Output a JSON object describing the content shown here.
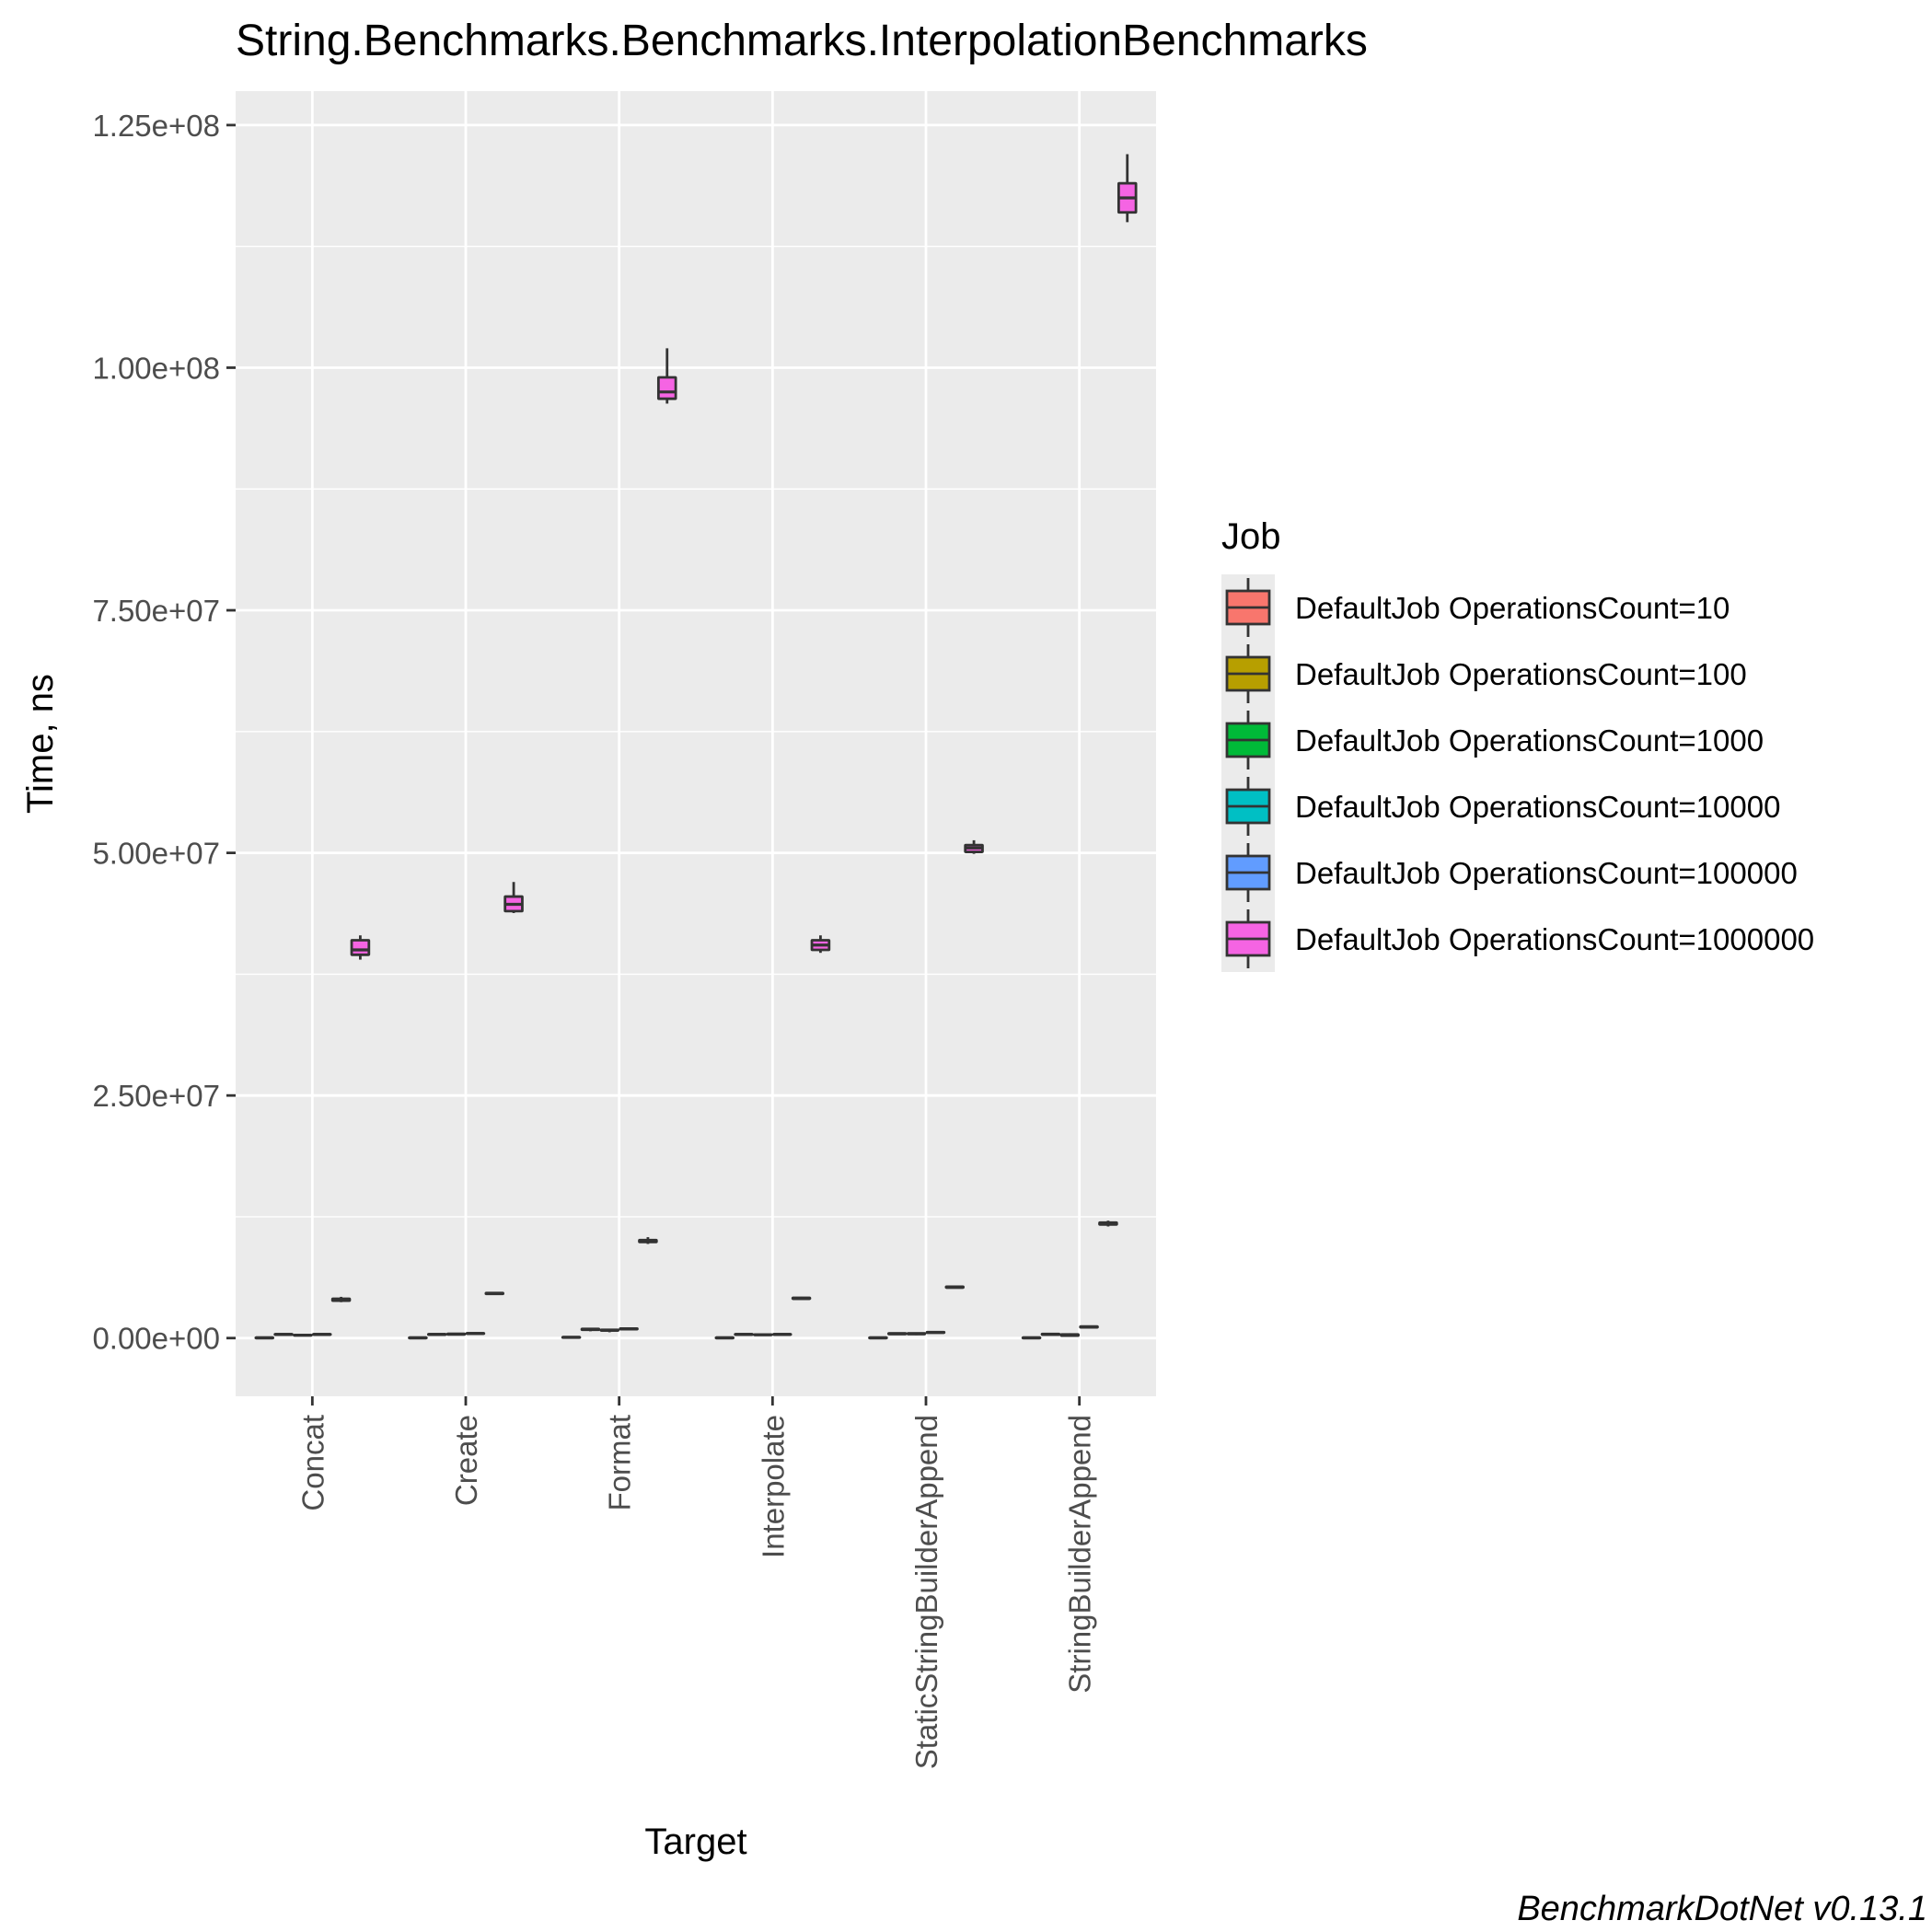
{
  "chart_data": {
    "type": "boxplot",
    "title": "String.Benchmarks.Benchmarks.InterpolationBenchmarks",
    "xlabel": "Target",
    "ylabel": "Time, ns",
    "caption": "BenchmarkDotNet v0.13.1",
    "ylim": [
      -6000000,
      128500000
    ],
    "yticks": [
      0,
      25000000,
      50000000,
      75000000,
      100000000,
      125000000
    ],
    "ytick_labels": [
      "0.00e+00",
      "2.50e+07",
      "5.00e+07",
      "7.50e+07",
      "1.00e+08",
      "1.25e+08"
    ],
    "grid": true,
    "legend": {
      "title": "Job",
      "position": "right",
      "entries": [
        {
          "label": "DefaultJob OperationsCount=10",
          "color": "#F8766D"
        },
        {
          "label": "DefaultJob OperationsCount=100",
          "color": "#B79F00"
        },
        {
          "label": "DefaultJob OperationsCount=1000",
          "color": "#00BA38"
        },
        {
          "label": "DefaultJob OperationsCount=10000",
          "color": "#00BFC4"
        },
        {
          "label": "DefaultJob OperationsCount=100000",
          "color": "#619CFF"
        },
        {
          "label": "DefaultJob OperationsCount=1000000",
          "color": "#F564E3"
        }
      ]
    },
    "categories": [
      "Concat",
      "Create",
      "Format",
      "Interpolate",
      "StaticStringBuilderAppend",
      "StringBuilderAppend"
    ],
    "series": [
      {
        "name": "DefaultJob OperationsCount=10",
        "boxes": [
          {
            "min": 30000,
            "q1": 38000,
            "median": 40000,
            "q3": 42000,
            "max": 50000
          },
          {
            "min": 30000,
            "q1": 38000,
            "median": 40000,
            "q3": 42000,
            "max": 50000
          },
          {
            "min": 70000,
            "q1": 85000,
            "median": 90000,
            "q3": 95000,
            "max": 110000
          },
          {
            "min": 30000,
            "q1": 38000,
            "median": 40000,
            "q3": 42000,
            "max": 50000
          },
          {
            "min": 30000,
            "q1": 38000,
            "median": 40000,
            "q3": 42000,
            "max": 50000
          },
          {
            "min": 30000,
            "q1": 38000,
            "median": 40000,
            "q3": 42000,
            "max": 50000
          }
        ]
      },
      {
        "name": "DefaultJob OperationsCount=100",
        "boxes": [
          {
            "min": 300000,
            "q1": 360000,
            "median": 380000,
            "q3": 400000,
            "max": 450000
          },
          {
            "min": 300000,
            "q1": 360000,
            "median": 380000,
            "q3": 400000,
            "max": 450000
          },
          {
            "min": 700000,
            "q1": 850000,
            "median": 900000,
            "q3": 950000,
            "max": 1050000
          },
          {
            "min": 300000,
            "q1": 360000,
            "median": 380000,
            "q3": 400000,
            "max": 450000
          },
          {
            "min": 350000,
            "q1": 420000,
            "median": 450000,
            "q3": 480000,
            "max": 550000
          },
          {
            "min": 300000,
            "q1": 360000,
            "median": 390000,
            "q3": 420000,
            "max": 480000
          }
        ]
      },
      {
        "name": "DefaultJob OperationsCount=1000",
        "boxes": [
          {
            "min": 200000,
            "q1": 280000,
            "median": 300000,
            "q3": 320000,
            "max": 400000
          },
          {
            "min": 300000,
            "q1": 380000,
            "median": 400000,
            "q3": 430000,
            "max": 500000
          },
          {
            "min": 600000,
            "q1": 780000,
            "median": 800000,
            "q3": 850000,
            "max": 950000
          },
          {
            "min": 250000,
            "q1": 330000,
            "median": 350000,
            "q3": 370000,
            "max": 450000
          },
          {
            "min": 300000,
            "q1": 420000,
            "median": 450000,
            "q3": 480000,
            "max": 560000
          },
          {
            "min": 150000,
            "q1": 250000,
            "median": 300000,
            "q3": 380000,
            "max": 500000
          }
        ]
      },
      {
        "name": "DefaultJob OperationsCount=10000",
        "boxes": [
          {
            "min": 320000,
            "q1": 360000,
            "median": 380000,
            "q3": 400000,
            "max": 450000
          },
          {
            "min": 420000,
            "q1": 460000,
            "median": 480000,
            "q3": 500000,
            "max": 560000
          },
          {
            "min": 860000,
            "q1": 920000,
            "median": 950000,
            "q3": 980000,
            "max": 1050000
          },
          {
            "min": 320000,
            "q1": 360000,
            "median": 380000,
            "q3": 400000,
            "max": 460000
          },
          {
            "min": 500000,
            "q1": 560000,
            "median": 580000,
            "q3": 610000,
            "max": 680000
          },
          {
            "min": 1000000,
            "q1": 1100000,
            "median": 1150000,
            "q3": 1200000,
            "max": 1300000
          }
        ]
      },
      {
        "name": "DefaultJob OperationsCount=100000",
        "boxes": [
          {
            "min": 3700000,
            "q1": 3850000,
            "median": 3950000,
            "q3": 4050000,
            "max": 4250000
          },
          {
            "min": 4450000,
            "q1": 4550000,
            "median": 4600000,
            "q3": 4650000,
            "max": 4750000
          },
          {
            "min": 9700000,
            "q1": 9900000,
            "median": 10000000,
            "q3": 10100000,
            "max": 10400000
          },
          {
            "min": 3950000,
            "q1": 4050000,
            "median": 4100000,
            "q3": 4150000,
            "max": 4250000
          },
          {
            "min": 5100000,
            "q1": 5200000,
            "median": 5250000,
            "q3": 5300000,
            "max": 5400000
          },
          {
            "min": 11500000,
            "q1": 11700000,
            "median": 11800000,
            "q3": 11900000,
            "max": 12100000
          }
        ]
      },
      {
        "name": "DefaultJob OperationsCount=1000000",
        "boxes": [
          {
            "min": 39000000,
            "q1": 39500000,
            "median": 40000000,
            "q3": 41000000,
            "max": 41500000
          },
          {
            "min": 43800000,
            "q1": 44000000,
            "median": 44700000,
            "q3": 45500000,
            "max": 47000000
          },
          {
            "min": 96300000,
            "q1": 96800000,
            "median": 97500000,
            "q3": 99000000,
            "max": 102000000
          },
          {
            "min": 39700000,
            "q1": 40000000,
            "median": 40500000,
            "q3": 41000000,
            "max": 41500000
          },
          {
            "min": 49900000,
            "q1": 50100000,
            "median": 50500000,
            "q3": 50800000,
            "max": 51300000
          },
          {
            "min": 115000000,
            "q1": 116000000,
            "median": 117500000,
            "q3": 119000000,
            "max": 122000000
          }
        ]
      }
    ]
  }
}
